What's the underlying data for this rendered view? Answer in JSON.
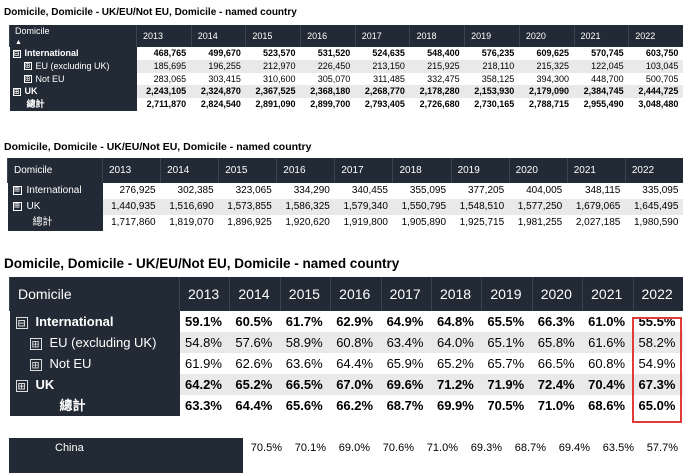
{
  "section1": {
    "title": "Domicile, Domicile - UK/EU/Not EU, Domicile - named country",
    "header_label": "Domicile",
    "sort_indicator": "▲",
    "years": [
      "2013",
      "2014",
      "2015",
      "2016",
      "2017",
      "2018",
      "2019",
      "2020",
      "2021",
      "2022"
    ],
    "rows": [
      {
        "label": "International",
        "expander": "⊟",
        "bold": true,
        "values": [
          "468,765",
          "499,670",
          "523,570",
          "531,520",
          "524,635",
          "548,400",
          "576,235",
          "609,625",
          "570,745",
          "603,750"
        ]
      },
      {
        "label": "EU (excluding UK)",
        "expander": "⊞",
        "bold": false,
        "values": [
          "185,695",
          "196,255",
          "212,970",
          "226,450",
          "213,150",
          "215,925",
          "218,110",
          "215,325",
          "122,045",
          "103,045"
        ]
      },
      {
        "label": "Not EU",
        "expander": "⊞",
        "bold": false,
        "values": [
          "283,065",
          "303,415",
          "310,600",
          "305,070",
          "311,485",
          "332,475",
          "358,125",
          "394,300",
          "448,700",
          "500,705"
        ]
      },
      {
        "label": "UK",
        "expander": "⊞",
        "bold": true,
        "values": [
          "2,243,105",
          "2,324,870",
          "2,367,525",
          "2,368,180",
          "2,268,770",
          "2,178,280",
          "2,153,930",
          "2,179,090",
          "2,384,745",
          "2,444,725"
        ]
      },
      {
        "label": "總計",
        "expander": "",
        "bold": true,
        "values": [
          "2,711,870",
          "2,824,540",
          "2,891,090",
          "2,899,700",
          "2,793,405",
          "2,726,680",
          "2,730,165",
          "2,788,715",
          "2,955,490",
          "3,048,480"
        ]
      }
    ]
  },
  "section2": {
    "title": "Domicile, Domicile - UK/EU/Not EU, Domicile - named country",
    "header_label": "Domicile",
    "years": [
      "2013",
      "2014",
      "2015",
      "2016",
      "2017",
      "2018",
      "2019",
      "2020",
      "2021",
      "2022"
    ],
    "rows": [
      {
        "label": "International",
        "expander": "⊞",
        "values": [
          "276,925",
          "302,385",
          "323,065",
          "334,290",
          "340,455",
          "355,095",
          "377,205",
          "404,005",
          "348,115",
          "335,095"
        ]
      },
      {
        "label": "UK",
        "expander": "⊞",
        "values": [
          "1,440,935",
          "1,516,690",
          "1,573,855",
          "1,586,325",
          "1,579,340",
          "1,550,795",
          "1,548,510",
          "1,577,250",
          "1,679,065",
          "1,645,495"
        ]
      },
      {
        "label": "總計",
        "expander": "",
        "values": [
          "1,717,860",
          "1,819,070",
          "1,896,925",
          "1,920,620",
          "1,919,800",
          "1,905,890",
          "1,925,715",
          "1,981,255",
          "2,027,185",
          "1,980,590"
        ]
      }
    ]
  },
  "section3": {
    "title": "Domicile, Domicile - UK/EU/Not EU, Domicile - named country",
    "header_label": "Domicile",
    "years": [
      "2013",
      "2014",
      "2015",
      "2016",
      "2017",
      "2018",
      "2019",
      "2020",
      "2021",
      "2022"
    ],
    "rows": [
      {
        "label": "International",
        "expander": "⊟",
        "bold": true,
        "values": [
          "59.1%",
          "60.5%",
          "61.7%",
          "62.9%",
          "64.9%",
          "64.8%",
          "65.5%",
          "66.3%",
          "61.0%",
          "55.5%"
        ]
      },
      {
        "label": "EU (excluding UK)",
        "expander": "⊞",
        "bold": false,
        "values": [
          "54.8%",
          "57.6%",
          "58.9%",
          "60.8%",
          "63.4%",
          "64.0%",
          "65.1%",
          "65.8%",
          "61.6%",
          "58.2%"
        ]
      },
      {
        "label": "Not EU",
        "expander": "⊞",
        "bold": false,
        "values": [
          "61.9%",
          "62.6%",
          "63.6%",
          "64.4%",
          "65.9%",
          "65.2%",
          "65.7%",
          "66.5%",
          "60.8%",
          "54.9%"
        ]
      },
      {
        "label": "UK",
        "expander": "⊞",
        "bold": true,
        "values": [
          "64.2%",
          "65.2%",
          "66.5%",
          "67.0%",
          "69.6%",
          "71.2%",
          "71.9%",
          "72.4%",
          "70.4%",
          "67.3%"
        ]
      },
      {
        "label": "總計",
        "expander": "",
        "bold": true,
        "values": [
          "63.3%",
          "64.4%",
          "65.6%",
          "66.2%",
          "68.7%",
          "69.9%",
          "70.5%",
          "71.0%",
          "68.6%",
          "65.0%"
        ]
      }
    ]
  },
  "section4": {
    "rows": [
      {
        "label": "China",
        "values": [
          "70.5%",
          "70.1%",
          "69.0%",
          "70.6%",
          "71.0%",
          "69.3%",
          "68.7%",
          "69.4%",
          "63.5%",
          "57.7%"
        ]
      }
    ]
  },
  "colors": {
    "header_bg": "#222a35",
    "shade": "#e9e9e9",
    "highlight": "#e03b3b"
  }
}
